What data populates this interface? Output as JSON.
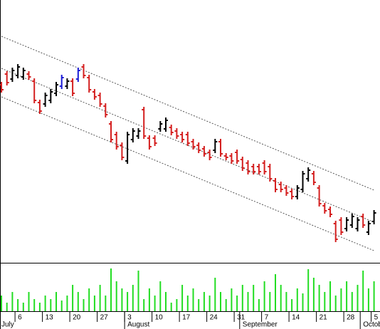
{
  "chart_data": {
    "type": "ohlc",
    "categories": [
      null,
      null,
      null,
      "6",
      null,
      null,
      null,
      null,
      "13",
      null,
      null,
      null,
      null,
      "20",
      null,
      null,
      null,
      null,
      "27",
      null,
      null,
      null,
      null,
      "3",
      null,
      null,
      null,
      null,
      "10",
      null,
      null,
      null,
      null,
      "17",
      null,
      null,
      null,
      null,
      "24",
      null,
      null,
      null,
      null,
      "31",
      null,
      null,
      null,
      null,
      "7",
      null,
      null,
      null,
      null,
      "14",
      null,
      null,
      null,
      null,
      "21",
      null,
      null,
      null,
      null,
      "28",
      null,
      null,
      null,
      null,
      "5"
    ],
    "months": [
      "July",
      null,
      null,
      null,
      null,
      null,
      null,
      null,
      null,
      null,
      null,
      null,
      null,
      null,
      null,
      null,
      null,
      null,
      null,
      null,
      null,
      null,
      null,
      "August",
      null,
      null,
      null,
      null,
      null,
      null,
      null,
      null,
      null,
      null,
      null,
      null,
      null,
      null,
      null,
      null,
      null,
      null,
      null,
      null,
      "September",
      null,
      null,
      null,
      null,
      null,
      null,
      null,
      null,
      null,
      null,
      null,
      null,
      null,
      null,
      null,
      null,
      null,
      null,
      null,
      null,
      null,
      "October",
      null,
      null
    ],
    "high": [
      245,
      260,
      265,
      270,
      265,
      260,
      250,
      220,
      230,
      235,
      245,
      255,
      250,
      250,
      265,
      270,
      255,
      235,
      230,
      215,
      190,
      175,
      160,
      175,
      180,
      180,
      210,
      170,
      170,
      190,
      195,
      185,
      180,
      175,
      175,
      165,
      160,
      155,
      150,
      165,
      165,
      145,
      145,
      150,
      140,
      135,
      130,
      130,
      135,
      130,
      110,
      105,
      100,
      95,
      100,
      120,
      125,
      120,
      100,
      75,
      70,
      50,
      55,
      55,
      60,
      55,
      60,
      50,
      65
    ],
    "low": [
      230,
      240,
      245,
      250,
      248,
      248,
      215,
      200,
      210,
      215,
      225,
      235,
      235,
      225,
      245,
      250,
      230,
      220,
      210,
      195,
      160,
      150,
      135,
      130,
      160,
      165,
      165,
      150,
      155,
      175,
      175,
      170,
      165,
      160,
      155,
      150,
      145,
      140,
      135,
      145,
      140,
      135,
      130,
      130,
      120,
      115,
      115,
      115,
      115,
      105,
      90,
      90,
      85,
      80,
      80,
      90,
      105,
      100,
      70,
      60,
      55,
      20,
      30,
      35,
      40,
      35,
      40,
      30,
      45
    ],
    "open": [
      241,
      256,
      249,
      254,
      252,
      256,
      246,
      216,
      214,
      219,
      229,
      239,
      239,
      246,
      249,
      266,
      251,
      231,
      226,
      211,
      186,
      171,
      156,
      134,
      164,
      169,
      206,
      166,
      166,
      179,
      179,
      181,
      176,
      171,
      171,
      161,
      156,
      151,
      146,
      149,
      161,
      141,
      141,
      146,
      136,
      131,
      126,
      126,
      131,
      126,
      106,
      101,
      96,
      91,
      84,
      94,
      109,
      116,
      96,
      71,
      66,
      46,
      51,
      39,
      44,
      39,
      56,
      34,
      49
    ],
    "close": [
      234,
      244,
      261,
      266,
      261,
      252,
      219,
      204,
      226,
      231,
      241,
      251,
      246,
      229,
      261,
      254,
      234,
      224,
      214,
      199,
      164,
      154,
      139,
      171,
      176,
      176,
      169,
      154,
      159,
      186,
      191,
      174,
      169,
      164,
      159,
      154,
      149,
      144,
      139,
      161,
      144,
      139,
      134,
      134,
      124,
      119,
      119,
      119,
      119,
      109,
      94,
      94,
      89,
      84,
      96,
      116,
      121,
      104,
      74,
      64,
      59,
      24,
      34,
      51,
      56,
      51,
      44,
      46,
      61
    ],
    "colors": [
      "#d41f1f",
      "#d41f1f",
      "#000000",
      "#000000",
      "#000000",
      "#d41f1f",
      "#d41f1f",
      "#d41f1f",
      "#000000",
      "#000000",
      "#000000",
      "#1c1cd6",
      "#000000",
      "#d41f1f",
      "#1c1cd6",
      "#d41f1f",
      "#d41f1f",
      "#d41f1f",
      "#d41f1f",
      "#d41f1f",
      "#d41f1f",
      "#d41f1f",
      "#d41f1f",
      "#000000",
      "#000000",
      "#000000",
      "#d41f1f",
      "#d41f1f",
      "#d41f1f",
      "#000000",
      "#000000",
      "#d41f1f",
      "#d41f1f",
      "#d41f1f",
      "#d41f1f",
      "#d41f1f",
      "#d41f1f",
      "#d41f1f",
      "#d41f1f",
      "#000000",
      "#d41f1f",
      "#d41f1f",
      "#d41f1f",
      "#d41f1f",
      "#d41f1f",
      "#d41f1f",
      "#d41f1f",
      "#d41f1f",
      "#d41f1f",
      "#d41f1f",
      "#d41f1f",
      "#d41f1f",
      "#d41f1f",
      "#d41f1f",
      "#000000",
      "#000000",
      "#000000",
      "#d41f1f",
      "#d41f1f",
      "#d41f1f",
      "#d41f1f",
      "#d41f1f",
      "#d41f1f",
      "#000000",
      "#000000",
      "#000000",
      "#d41f1f",
      "#000000",
      "#000000"
    ],
    "ylim": [
      0,
      360
    ],
    "volume": {
      "values": [
        22,
        12,
        27,
        17,
        12,
        27,
        17,
        12,
        22,
        17,
        27,
        15,
        22,
        37,
        27,
        17,
        32,
        22,
        37,
        22,
        60,
        42,
        32,
        27,
        37,
        57,
        17,
        32,
        22,
        42,
        27,
        12,
        17,
        37,
        22,
        32,
        17,
        27,
        22,
        47,
        27,
        17,
        32,
        22,
        37,
        27,
        37,
        17,
        42,
        27,
        52,
        37,
        27,
        17,
        32,
        25,
        59,
        47,
        37,
        27,
        42,
        22,
        32,
        42,
        27,
        37,
        57,
        32,
        42
      ],
      "color": "#22dd22",
      "ylim": [
        0,
        65
      ]
    },
    "channel": {
      "color": "#555555",
      "lines": [
        {
          "start": 309,
          "end": 93
        },
        {
          "start": 264,
          "end": 48
        },
        {
          "start": 224,
          "end": 8
        }
      ]
    }
  }
}
